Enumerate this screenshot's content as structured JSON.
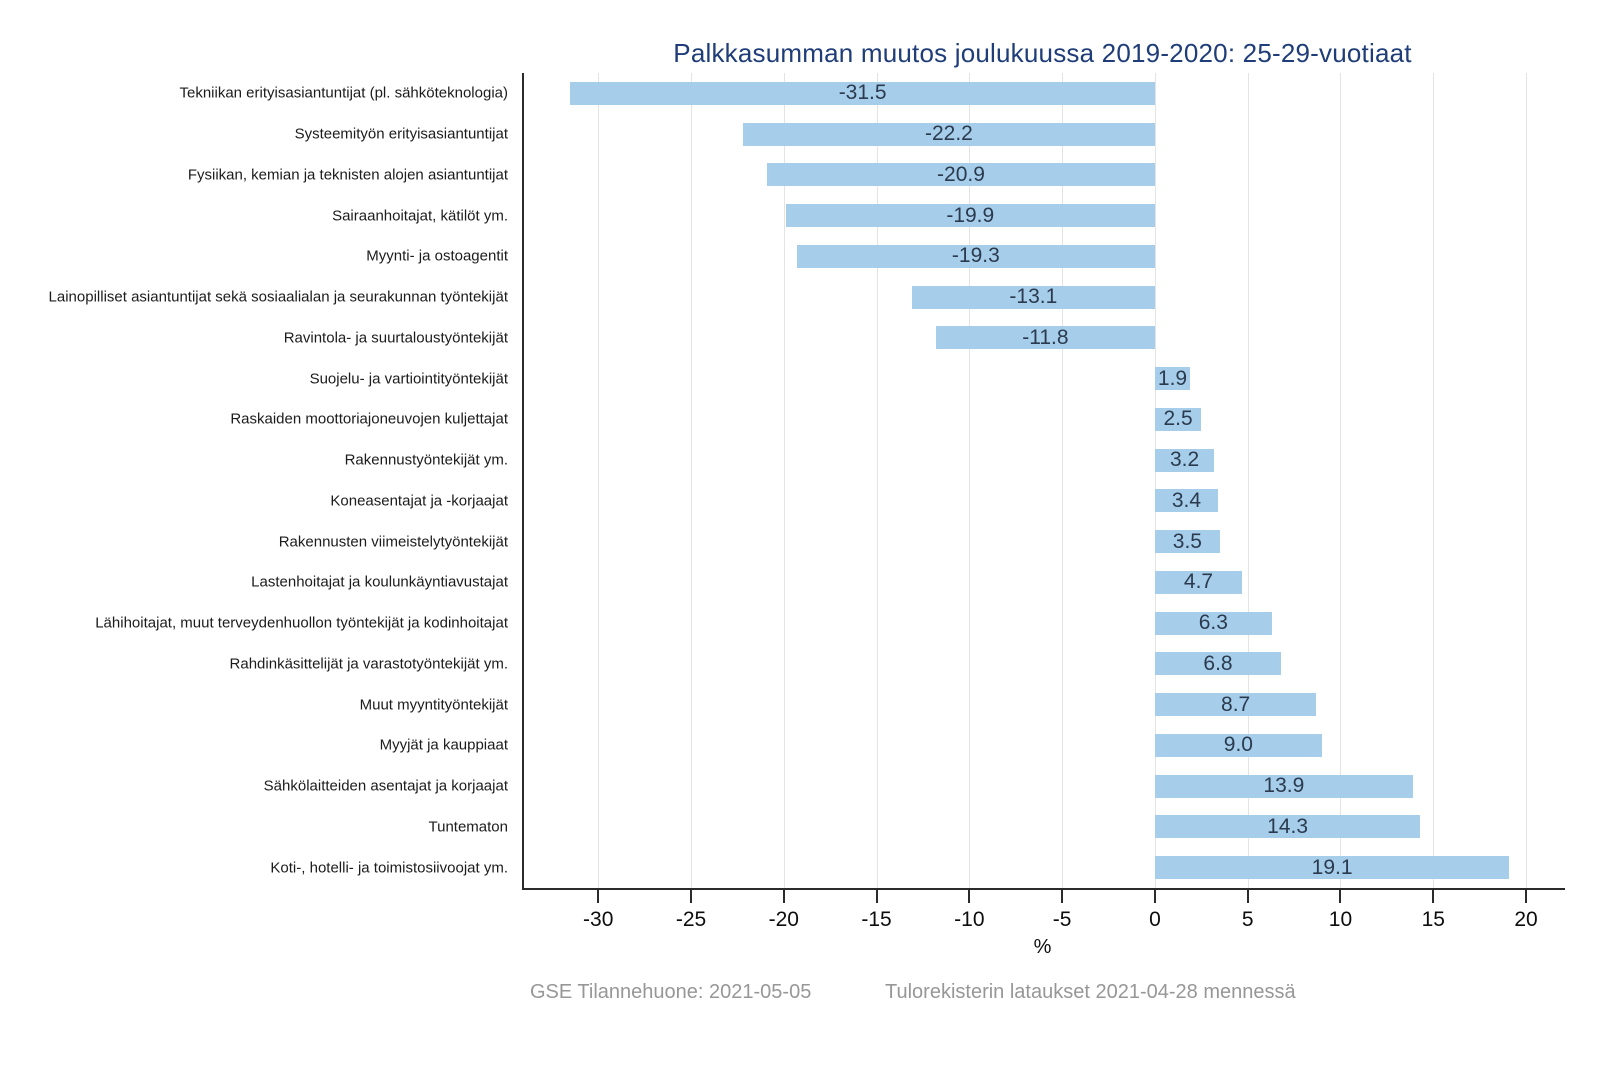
{
  "title": "Palkkasumman muutos joulukuussa 2019-2020: 25-29-vuotiaat",
  "footer": {
    "left": "GSE Tilannehuone: 2021-05-05",
    "right": "Tulorekisterin lataukset 2021-04-28 mennessä"
  },
  "colors": {
    "bar": "#a6ceea",
    "value_label": "#2b3a4e",
    "title": "#1f3d78",
    "gridline": "#e4e4e4",
    "axis": "#2b2b2b",
    "footer": "#979797"
  },
  "chart_data": {
    "type": "bar",
    "orientation": "horizontal",
    "title": "Palkkasumman muutos joulukuussa 2019-2020: 25-29-vuotiaat",
    "xlabel": "%",
    "ylabel": "",
    "xlim": [
      -34,
      22.1
    ],
    "xticks": [
      -30,
      -25,
      -20,
      -15,
      -10,
      -5,
      0,
      5,
      10,
      15,
      20
    ],
    "grid": true,
    "legend": false,
    "categories": [
      "Tekniikan erityisasiantuntijat (pl. sähköteknologia)",
      "Systeemityön erityisasiantuntijat",
      "Fysiikan, kemian ja teknisten alojen asiantuntijat",
      "Sairaanhoitajat, kätilöt ym.",
      "Myynti- ja ostoagentit",
      "Lainopilliset asiantuntijat sekä sosiaalialan ja seurakunnan työntekijät",
      "Ravintola- ja suurtaloustyöntekijät",
      "Suojelu- ja vartiointityöntekijät",
      "Raskaiden moottoriajoneuvojen kuljettajat",
      "Rakennustyöntekijät ym.",
      "Koneasentajat ja -korjaajat",
      "Rakennusten viimeistelytyöntekijät",
      "Lastenhoitajat ja koulunkäyntiavustajat",
      "Lähihoitajat, muut terveydenhuollon työntekijät ja kodinhoitajat",
      "Rahdinkäsittelijät ja varastotyöntekijät ym.",
      "Muut myyntityöntekijät",
      "Myyjät ja kauppiaat",
      "Sähkölaitteiden asentajat ja korjaajat",
      "Tuntematon",
      "Koti-, hotelli- ja toimistosiivoojat ym."
    ],
    "values": [
      -31.5,
      -22.2,
      -20.9,
      -19.9,
      -19.3,
      -13.1,
      -11.8,
      1.9,
      2.5,
      3.2,
      3.4,
      3.5,
      4.7,
      6.3,
      6.8,
      8.7,
      9.0,
      13.9,
      14.3,
      19.1
    ]
  }
}
